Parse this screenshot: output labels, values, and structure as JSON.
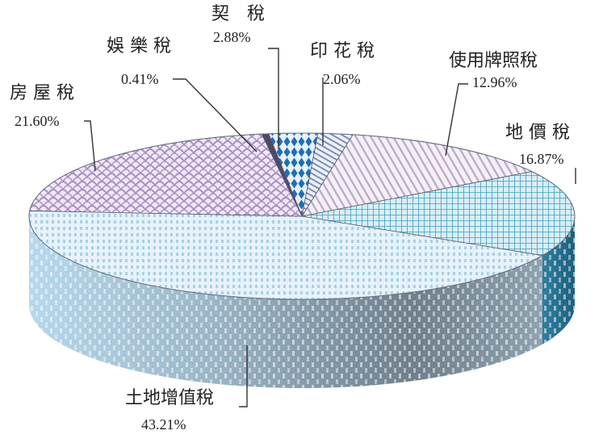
{
  "chart_data": {
    "type": "pie",
    "title": "",
    "slices": [
      {
        "label": "契　稅",
        "value": 2.88,
        "display": "2.88%",
        "color": "#1f6fb5",
        "pattern": "diamond"
      },
      {
        "label": "印 花 稅",
        "value": 2.06,
        "display": "2.06%",
        "color": "#7a90b8",
        "pattern": "diagonal"
      },
      {
        "label": "使用牌照稅",
        "value": 12.96,
        "display": "12.96%",
        "color": "#b9a7c6",
        "pattern": "diagonal-light"
      },
      {
        "label": "地 價 稅",
        "value": 16.87,
        "display": "16.87%",
        "color": "#3e9fbf",
        "pattern": "grid"
      },
      {
        "label": "土地增值稅",
        "value": 43.21,
        "display": "43.21%",
        "color": "#a9d0e6",
        "pattern": "dots"
      },
      {
        "label": "房 屋 稅",
        "value": 21.6,
        "display": "21.60%",
        "color": "#a98fc4",
        "pattern": "scale"
      },
      {
        "label": "娛 樂 稅",
        "value": 0.41,
        "display": "0.41%",
        "color": "#4a4a6a",
        "pattern": "solid"
      }
    ]
  }
}
